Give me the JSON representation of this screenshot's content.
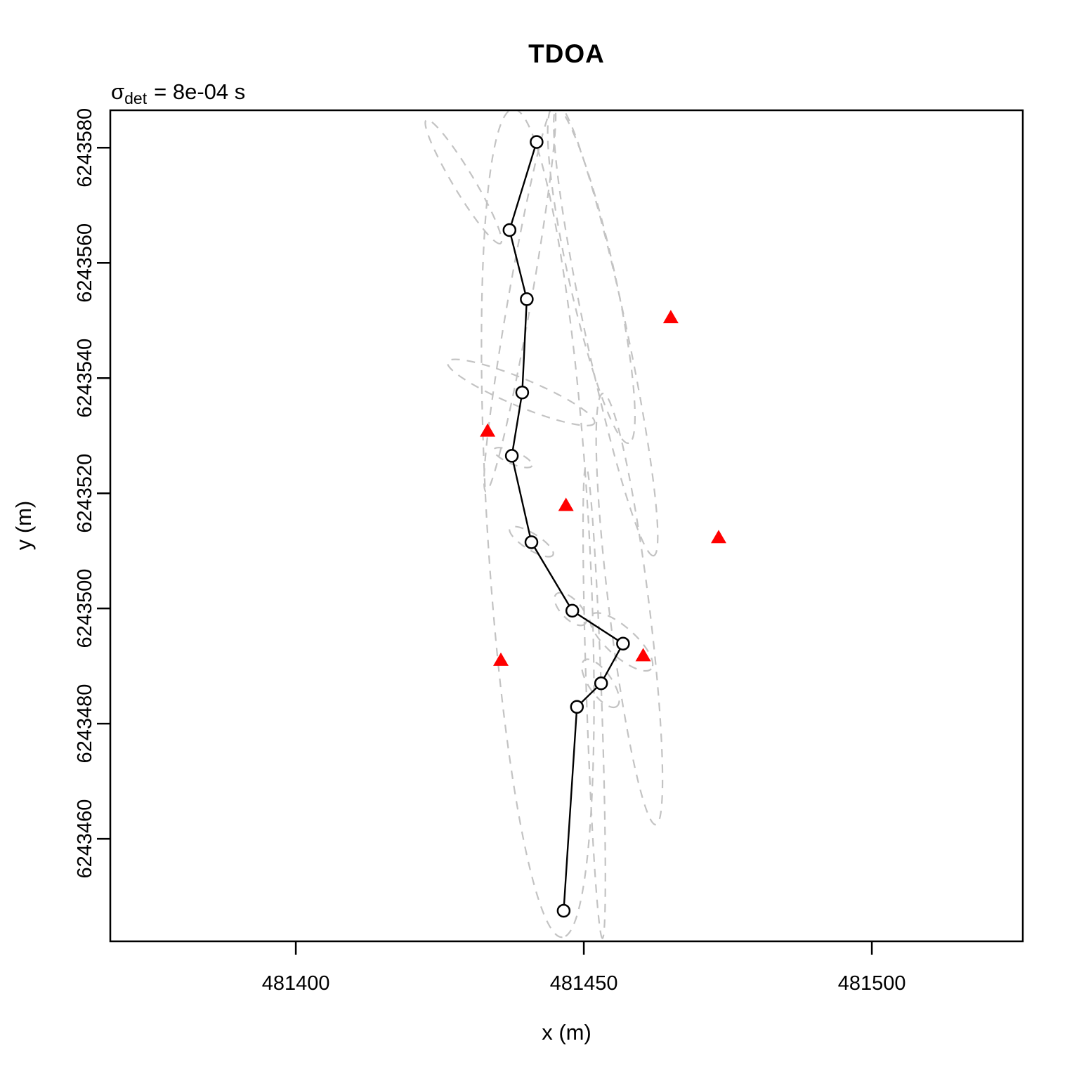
{
  "title": "TDOA",
  "annotation": {
    "sigma": "σ",
    "sub": "det",
    "value": "= 8e-04 s",
    "full": "σ_det = 8e-04 s"
  },
  "axes": {
    "x_label": "x (m)",
    "y_label": "y (m)"
  },
  "chart_data": {
    "type": "scatter",
    "title": "TDOA",
    "annotation": "σ_det = 8e-04 s",
    "xlabel": "x (m)",
    "ylabel": "y (m)",
    "xlim": [
      481367.8,
      481526.2
    ],
    "ylim": [
      6243442.2,
      6243586.5
    ],
    "x_ticks": [
      481400,
      481450,
      481500
    ],
    "x_tick_labels": [
      "481400",
      "481450",
      "481500"
    ],
    "y_ticks": [
      6243460,
      6243480,
      6243500,
      6243520,
      6243540,
      6243560,
      6243580
    ],
    "y_tick_labels": [
      "6243460",
      "6243480",
      "6243500",
      "6243520",
      "6243540",
      "6243560",
      "6243580"
    ],
    "grid": false,
    "legend": null,
    "colors": {
      "track": "#000000",
      "receiver": "#ff0000",
      "ellipse": "#c3c3c3",
      "frame": "#000000"
    },
    "marker": {
      "track_shape": "open-circle",
      "receiver_shape": "filled-triangle-up"
    },
    "track": [
      [
        481441.8,
        6243581.0
      ],
      [
        481437.1,
        6243565.7
      ],
      [
        481440.1,
        6243553.7
      ],
      [
        481439.3,
        6243537.5
      ],
      [
        481437.5,
        6243526.5
      ],
      [
        481440.9,
        6243511.5
      ],
      [
        481448.0,
        6243499.6
      ],
      [
        481456.8,
        6243493.9
      ],
      [
        481453.0,
        6243487.0
      ],
      [
        481448.8,
        6243482.9
      ],
      [
        481446.5,
        6243447.5
      ]
    ],
    "receivers": [
      [
        481465.1,
        6243550.5
      ],
      [
        481433.3,
        6243530.8
      ],
      [
        481446.9,
        6243517.9
      ],
      [
        481473.4,
        6243512.3
      ],
      [
        481435.6,
        6243491.0
      ],
      [
        481460.3,
        6243491.8
      ]
    ],
    "error_ellipses": [
      {
        "cx": 481429.1,
        "cy": 6243574.1,
        "a": 12.5,
        "b": 1.8,
        "angle_deg": -59
      },
      {
        "cx": 481438.9,
        "cy": 6243553.8,
        "a": 34.0,
        "b": 2.0,
        "angle_deg": -100
      },
      {
        "cx": 481439.1,
        "cy": 6243537.5,
        "a": 13.8,
        "b": 2.4,
        "angle_deg": -22.6
      },
      {
        "cx": 481437.7,
        "cy": 6243526.2,
        "a": 3.6,
        "b": 1.1,
        "angle_deg": -23
      },
      {
        "cx": 481440.9,
        "cy": 6243511.6,
        "a": 4.4,
        "b": 1.4,
        "angle_deg": -32
      },
      {
        "cx": 481447.7,
        "cy": 6243499.9,
        "a": 3.6,
        "b": 1.7,
        "angle_deg": -46
      },
      {
        "cx": 481456.5,
        "cy": 6243494.2,
        "a": 7.0,
        "b": 2.5,
        "angle_deg": -42
      },
      {
        "cx": 481452.9,
        "cy": 6243487.0,
        "a": 4.9,
        "b": 2.0,
        "angle_deg": -55
      },
      {
        "cx": 481442.0,
        "cy": 6243514.8,
        "a": 72.0,
        "b": 8.8,
        "angle_deg": -86.6
      },
      {
        "cx": 481453.8,
        "cy": 6243548.3,
        "a": 40.0,
        "b": 3.6,
        "angle_deg": -78
      },
      {
        "cx": 481451.3,
        "cy": 6243558.0,
        "a": 30.0,
        "b": 4.0,
        "angle_deg": -77.5
      },
      {
        "cx": 481451.8,
        "cy": 6243483.7,
        "a": 41.0,
        "b": 1.3,
        "angle_deg": -88
      },
      {
        "cx": 481457.9,
        "cy": 6243499.9,
        "a": 37.7,
        "b": 3.5,
        "angle_deg": -83
      }
    ]
  }
}
